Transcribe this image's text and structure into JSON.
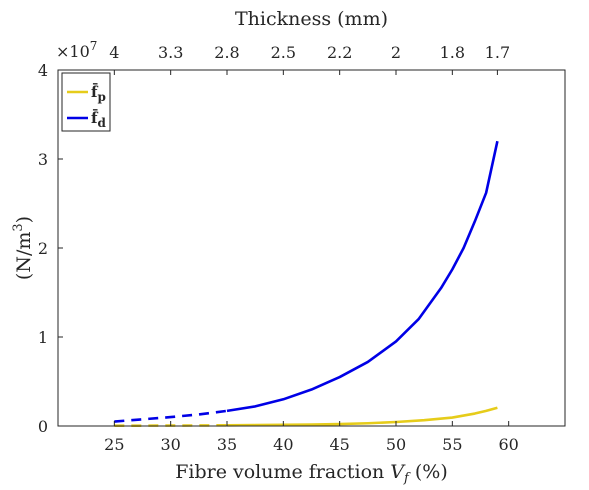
{
  "chart_data": {
    "type": "line",
    "xlabel": "Fibre volume fraction",
    "xlabel_var": "V",
    "xlabel_sub": "f",
    "xlabel_unit": "(%)",
    "ylabel": "(N/m",
    "ylabel_sup": "3",
    "ylabel_close": ")",
    "top_xlabel": "Thickness (mm)",
    "y_multiplier_base": "×10",
    "y_multiplier_exp": "7",
    "xlim": [
      20,
      65
    ],
    "ylim": [
      0,
      4
    ],
    "x_ticks": [
      25,
      30,
      35,
      40,
      45,
      50,
      55,
      60
    ],
    "y_ticks": [
      0,
      1,
      2,
      3,
      4
    ],
    "top_ticks": [
      {
        "label": "4",
        "x": 25
      },
      {
        "label": "3.3",
        "x": 30
      },
      {
        "label": "2.8",
        "x": 35
      },
      {
        "label": "2.5",
        "x": 40
      },
      {
        "label": "2.2",
        "x": 45
      },
      {
        "label": "2",
        "x": 50
      },
      {
        "label": "1.8",
        "x": 55
      },
      {
        "label": "1.7",
        "x": 59
      }
    ],
    "legend_position": "top-left",
    "grid": false,
    "series": [
      {
        "name": "f̄p",
        "legend_main": "f̄",
        "legend_sub": "p",
        "color": "#E6CC1A",
        "dashed_until_x": 35,
        "x": [
          25,
          27.5,
          30,
          32.5,
          35,
          37.5,
          40,
          42.5,
          45,
          47.5,
          50,
          52.5,
          55,
          57,
          58,
          59
        ],
        "y": [
          0.003,
          0.004,
          0.005,
          0.006,
          0.008,
          0.01,
          0.013,
          0.017,
          0.022,
          0.031,
          0.045,
          0.065,
          0.095,
          0.14,
          0.17,
          0.205
        ]
      },
      {
        "name": "f̄d",
        "legend_main": "f̄",
        "legend_sub": "d",
        "color": "#0000E6",
        "dashed_until_x": 35,
        "x": [
          25,
          27.5,
          30,
          32.5,
          35,
          37.5,
          40,
          42.5,
          45,
          47.5,
          50,
          52,
          54,
          55,
          56,
          57,
          58,
          59
        ],
        "y": [
          0.05,
          0.075,
          0.1,
          0.13,
          0.17,
          0.22,
          0.3,
          0.41,
          0.55,
          0.72,
          0.95,
          1.2,
          1.55,
          1.76,
          2.0,
          2.3,
          2.62,
          3.2
        ]
      }
    ]
  }
}
